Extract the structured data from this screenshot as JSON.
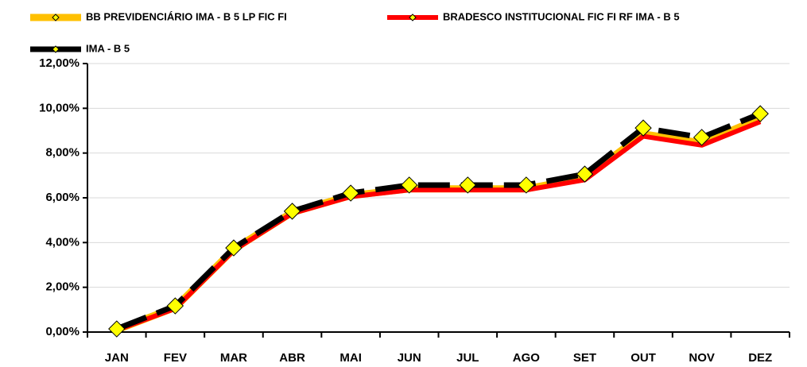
{
  "chart_data": {
    "type": "line",
    "categories": [
      "JAN",
      "FEV",
      "MAR",
      "ABR",
      "MAI",
      "JUN",
      "JUL",
      "AGO",
      "SET",
      "OUT",
      "NOV",
      "DEZ"
    ],
    "series": [
      {
        "name": "BB PREVIDENCIÁRIO IMA - B 5 LP FIC FI",
        "color": "#ffc000",
        "values": [
          0.1,
          1.1,
          3.7,
          5.35,
          6.1,
          6.4,
          6.4,
          6.4,
          6.9,
          8.85,
          8.45,
          9.55
        ]
      },
      {
        "name": "BRADESCO INSTITUCIONAL FIC FI RF IMA - B 5",
        "color": "#ff0000",
        "values": [
          0.08,
          1.05,
          3.65,
          5.3,
          6.05,
          6.35,
          6.35,
          6.35,
          6.8,
          8.75,
          8.35,
          9.4
        ]
      },
      {
        "name": "IMA - B 5",
        "color": "#000000",
        "values": [
          0.14,
          1.17,
          3.76,
          5.4,
          6.21,
          6.57,
          6.57,
          6.57,
          7.06,
          9.12,
          8.7,
          9.76
        ]
      }
    ],
    "ylim": [
      0,
      12
    ],
    "yticks": [
      {
        "value": 0,
        "label": "0,00%"
      },
      {
        "value": 2,
        "label": "2,00%"
      },
      {
        "value": 4,
        "label": "4,00%"
      },
      {
        "value": 6,
        "label": "6,00%"
      },
      {
        "value": 8,
        "label": "8,00%"
      },
      {
        "value": 10,
        "label": "10,00%"
      },
      {
        "value": 12,
        "label": "12,00%"
      }
    ],
    "grid": true
  }
}
